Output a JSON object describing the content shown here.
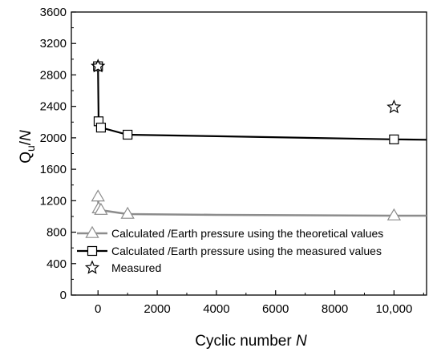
{
  "chart_data": {
    "type": "line",
    "xlabel": {
      "main": "Cyclic number ",
      "italic": "N"
    },
    "ylabel": {
      "main": "Q",
      "sub": "u",
      "post": "/",
      "italic": "N"
    },
    "xlim": [
      -900,
      11100
    ],
    "ylim": [
      0,
      3600
    ],
    "x_ticks": [
      0,
      2000,
      4000,
      6000,
      8000,
      10000
    ],
    "x_tick_labels": [
      "0",
      "2000",
      "4000",
      "6000",
      "8000",
      "10,000"
    ],
    "y_ticks": [
      0,
      400,
      800,
      1200,
      1600,
      2000,
      2400,
      2800,
      3200,
      3600
    ],
    "y_tick_labels": [
      "0",
      "400",
      "800",
      "1200",
      "1600",
      "2000",
      "2400",
      "2800",
      "3200",
      "3600"
    ],
    "grid": false,
    "legend_position": "lower-left",
    "series": [
      {
        "name": "Calculated /Earth pressure using the theoretical values",
        "color": "#8c8c8c",
        "marker": "triangle",
        "points": [
          [
            0,
            1250
          ],
          [
            20,
            1100
          ],
          [
            100,
            1080
          ],
          [
            1000,
            1030
          ],
          [
            10000,
            1010
          ]
        ],
        "curve": [
          [
            0,
            1250
          ],
          [
            20,
            1100
          ],
          [
            100,
            1080
          ],
          [
            1000,
            1030
          ],
          [
            4000,
            1020
          ],
          [
            10000,
            1010
          ],
          [
            11100,
            1010
          ]
        ]
      },
      {
        "name": "Calculated /Earth pressure using the measured values",
        "color": "#000000",
        "marker": "square",
        "points": [
          [
            0,
            2910
          ],
          [
            20,
            2210
          ],
          [
            100,
            2130
          ],
          [
            1000,
            2040
          ],
          [
            10000,
            1980
          ]
        ],
        "curve": [
          [
            0,
            2910
          ],
          [
            20,
            2210
          ],
          [
            100,
            2130
          ],
          [
            1000,
            2040
          ],
          [
            4000,
            2020
          ],
          [
            10000,
            1980
          ],
          [
            11100,
            1975
          ]
        ]
      },
      {
        "name": "Measured",
        "color": "#000000",
        "marker": "star",
        "points": [
          [
            0,
            2910
          ],
          [
            10000,
            2390
          ]
        ],
        "curve": []
      }
    ]
  }
}
